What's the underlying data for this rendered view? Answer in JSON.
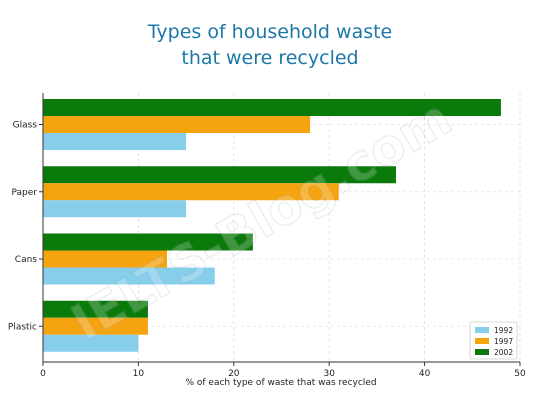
{
  "chart_data": {
    "type": "bar",
    "orientation": "horizontal",
    "title_lines": [
      "Types of household waste",
      "that were recycled"
    ],
    "xlabel": "% of each type of waste that was recycled",
    "ylabel": "",
    "categories": [
      "Glass",
      "Paper",
      "Cans",
      "Plastic"
    ],
    "series": [
      {
        "name": "2002",
        "color": "#0a7a0a",
        "values": [
          48,
          37,
          22,
          11
        ]
      },
      {
        "name": "1997",
        "color": "#f5a30f",
        "values": [
          28,
          31,
          13,
          11
        ]
      },
      {
        "name": "1992",
        "color": "#87ceeb",
        "values": [
          15,
          15,
          18,
          10
        ]
      }
    ],
    "legend_order": [
      "1992",
      "1997",
      "2002"
    ],
    "legend_position": "bottom-right",
    "xlim": [
      0,
      50
    ],
    "xticks": [
      0,
      10,
      20,
      30,
      40,
      50
    ],
    "grid": true,
    "watermark": "IELTS-Blog.com"
  }
}
